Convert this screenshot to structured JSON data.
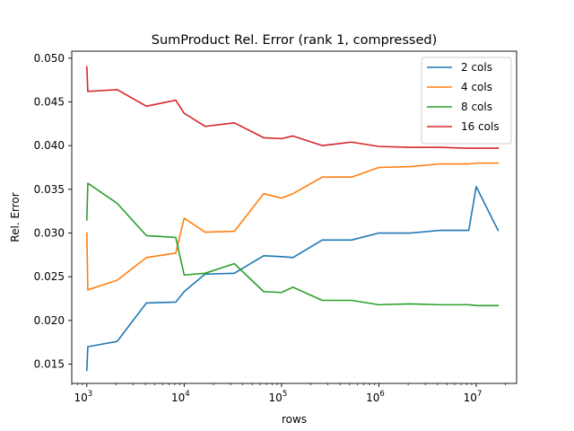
{
  "chart_data": {
    "type": "line",
    "title": "SumProduct Rel. Error (rank 1, compressed)",
    "xlabel": "rows",
    "ylabel": "Rel. Error",
    "xscale": "log",
    "xlim": [
      700,
      26000000
    ],
    "ylim": [
      0.0128,
      0.0508
    ],
    "x_ticks": [
      {
        "value": 1000,
        "base": "10",
        "exp": "3"
      },
      {
        "value": 10000,
        "base": "10",
        "exp": "4"
      },
      {
        "value": 100000,
        "base": "10",
        "exp": "5"
      },
      {
        "value": 1000000,
        "base": "10",
        "exp": "6"
      },
      {
        "value": 10000000,
        "base": "10",
        "exp": "7"
      }
    ],
    "y_ticks": [
      {
        "value": 0.015,
        "label": "0.015"
      },
      {
        "value": 0.02,
        "label": "0.020"
      },
      {
        "value": 0.025,
        "label": "0.025"
      },
      {
        "value": 0.03,
        "label": "0.030"
      },
      {
        "value": 0.035,
        "label": "0.035"
      },
      {
        "value": 0.04,
        "label": "0.040"
      },
      {
        "value": 0.045,
        "label": "0.045"
      },
      {
        "value": 0.05,
        "label": "0.050"
      }
    ],
    "grid": false,
    "legend_position": "top-right",
    "x": [
      1000,
      1024,
      2048,
      4096,
      8192,
      10000,
      16384,
      32768,
      65536,
      100000,
      131072,
      262144,
      524288,
      1000000,
      2097152,
      4194304,
      8388608,
      10000000,
      16777216
    ],
    "series": [
      {
        "name": "2 cols",
        "color": "#1f77b4",
        "values": [
          0.0143,
          0.017,
          0.0176,
          0.022,
          0.0221,
          0.0233,
          0.0253,
          0.0254,
          0.0274,
          0.0273,
          0.0272,
          0.0292,
          0.0292,
          0.03,
          0.03,
          0.0303,
          0.0303,
          0.0353,
          0.0303
        ]
      },
      {
        "name": "4 cols",
        "color": "#ff7f0e",
        "values": [
          0.03,
          0.0235,
          0.0246,
          0.0272,
          0.0277,
          0.0317,
          0.0301,
          0.0302,
          0.0345,
          0.034,
          0.0345,
          0.0364,
          0.0364,
          0.0375,
          0.0376,
          0.0379,
          0.0379,
          0.038,
          0.038
        ]
      },
      {
        "name": "8 cols",
        "color": "#2ca02c",
        "values": [
          0.0315,
          0.0357,
          0.0334,
          0.0297,
          0.0295,
          0.0252,
          0.0254,
          0.0265,
          0.0233,
          0.0232,
          0.0238,
          0.0223,
          0.0223,
          0.0218,
          0.0219,
          0.0218,
          0.0218,
          0.0217,
          0.0217
        ]
      },
      {
        "name": "16 cols",
        "color": "#d62728",
        "values": [
          0.049,
          0.0462,
          0.0464,
          0.0445,
          0.0452,
          0.0437,
          0.0422,
          0.0426,
          0.0409,
          0.0408,
          0.0411,
          0.04,
          0.0404,
          0.0399,
          0.0398,
          0.0398,
          0.0397,
          0.0397,
          0.0397
        ]
      }
    ]
  }
}
